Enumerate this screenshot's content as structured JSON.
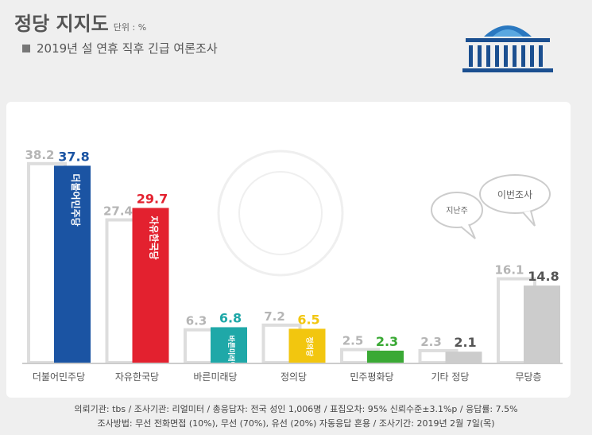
{
  "header": {
    "title": "정당 지지도",
    "unit": "단위 : %",
    "subtitle": "2019년 설 연휴 직후 긴급 여론조사"
  },
  "bubbles": {
    "previous": "지난주",
    "current": "이번조사"
  },
  "colors": {
    "previous_bar": "#ffffff",
    "previous_border": "#dddddd",
    "previous_label": "#b5b5b5",
    "label_text": "#555555"
  },
  "chart_data": {
    "type": "bar",
    "categories": [
      "더불어민주당",
      "자유한국당",
      "바른미래당",
      "정의당",
      "민주평화당",
      "기타 정당",
      "무당층"
    ],
    "series": [
      {
        "name": "지난주",
        "values": [
          38.2,
          27.4,
          6.3,
          7.2,
          2.5,
          2.3,
          16.1
        ]
      },
      {
        "name": "이번조사",
        "values": [
          37.8,
          29.7,
          6.8,
          6.5,
          2.3,
          2.1,
          14.8
        ]
      }
    ],
    "current_colors": [
      "#1b54a3",
      "#e3212f",
      "#1fa8a8",
      "#f2c60f",
      "#3aa935",
      "#cccccc",
      "#cccccc"
    ],
    "current_label_colors": [
      "#1b54a3",
      "#e3212f",
      "#1fa8a8",
      "#f2c60f",
      "#3aa935",
      "#555555",
      "#555555"
    ],
    "party_marks": [
      "더불어민주당",
      "자유한국당",
      "바른미래당",
      "정의당",
      "",
      "",
      ""
    ],
    "ylim": [
      0,
      40
    ],
    "legend": "speech bubbles"
  },
  "footer": {
    "line1": "의뢰기관: tbs / 조사기관: 리얼미터 / 총응답자: 전국 성인 1,006명 / 표집오차: 95% 신뢰수준±3.1%p / 응답률: 7.5%",
    "line2": "조사방법: 무선 전화면접 (10%), 무선 (70%), 유선 (20%) 자동응답 혼용 / 조사기간: 2019년 2월 7일(목)"
  }
}
